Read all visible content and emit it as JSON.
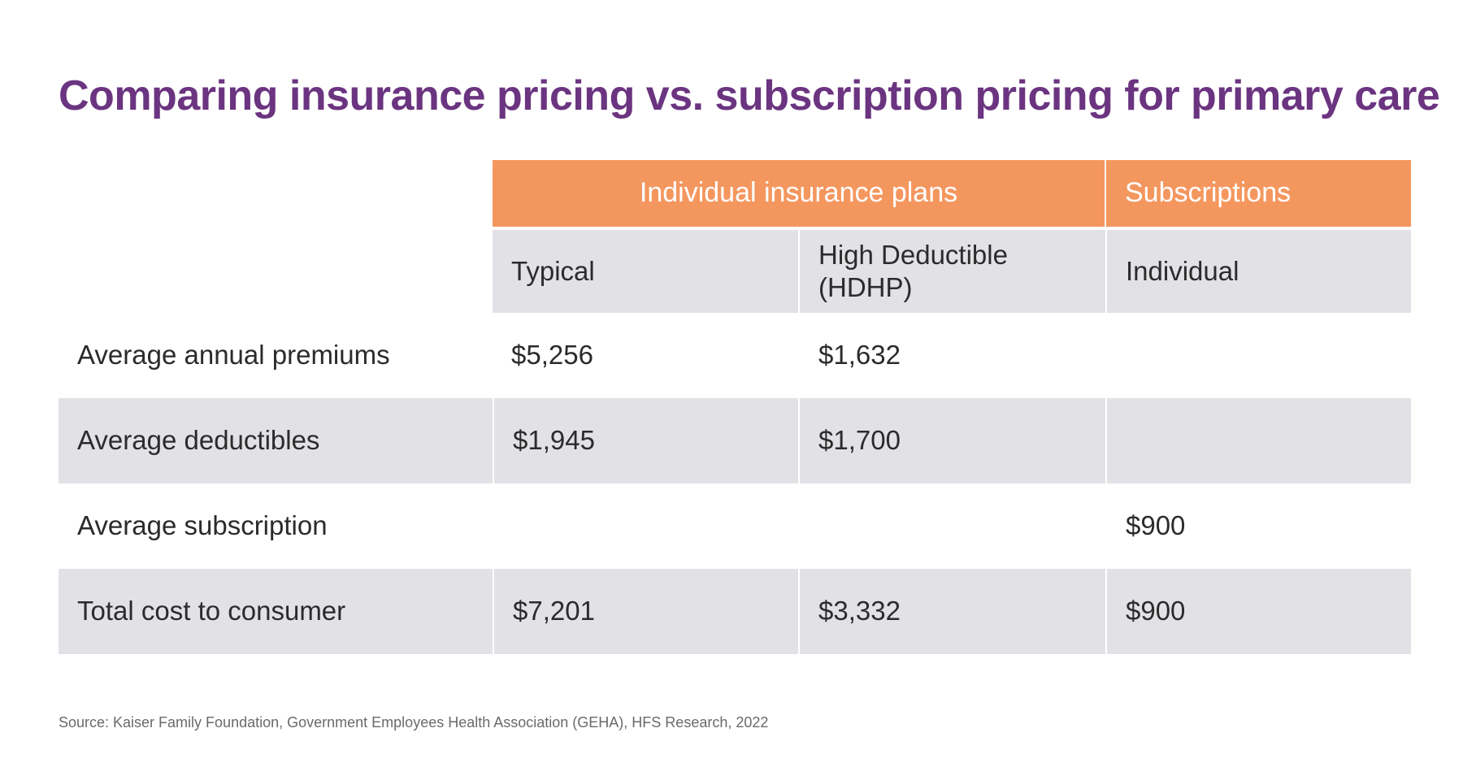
{
  "chart_data": {
    "type": "table",
    "title": "Comparing insurance pricing vs. subscription pricing for primary care",
    "column_groups": [
      {
        "label": "Individual insurance plans",
        "span": 2
      },
      {
        "label": "Subscriptions",
        "span": 1
      }
    ],
    "columns": [
      "Typical",
      "High Deductible (HDHP)",
      "Individual"
    ],
    "rows": [
      {
        "label": "Average annual premiums",
        "values": [
          "$5,256",
          "$1,632",
          ""
        ]
      },
      {
        "label": "Average deductibles",
        "values": [
          "$1,945",
          "$1,700",
          ""
        ]
      },
      {
        "label": "Average subscription",
        "values": [
          "",
          "",
          "$900"
        ]
      },
      {
        "label": "Total cost to consumer",
        "values": [
          "$7,201",
          "$3,332",
          "$900"
        ]
      }
    ],
    "source": "Source: Kaiser Family Foundation, Government Employees Health Association (GEHA), HFS Research, 2022"
  },
  "colors": {
    "title": "#6b3480",
    "header_accent": "#f4975f",
    "row_shade": "#e2e2e6"
  }
}
